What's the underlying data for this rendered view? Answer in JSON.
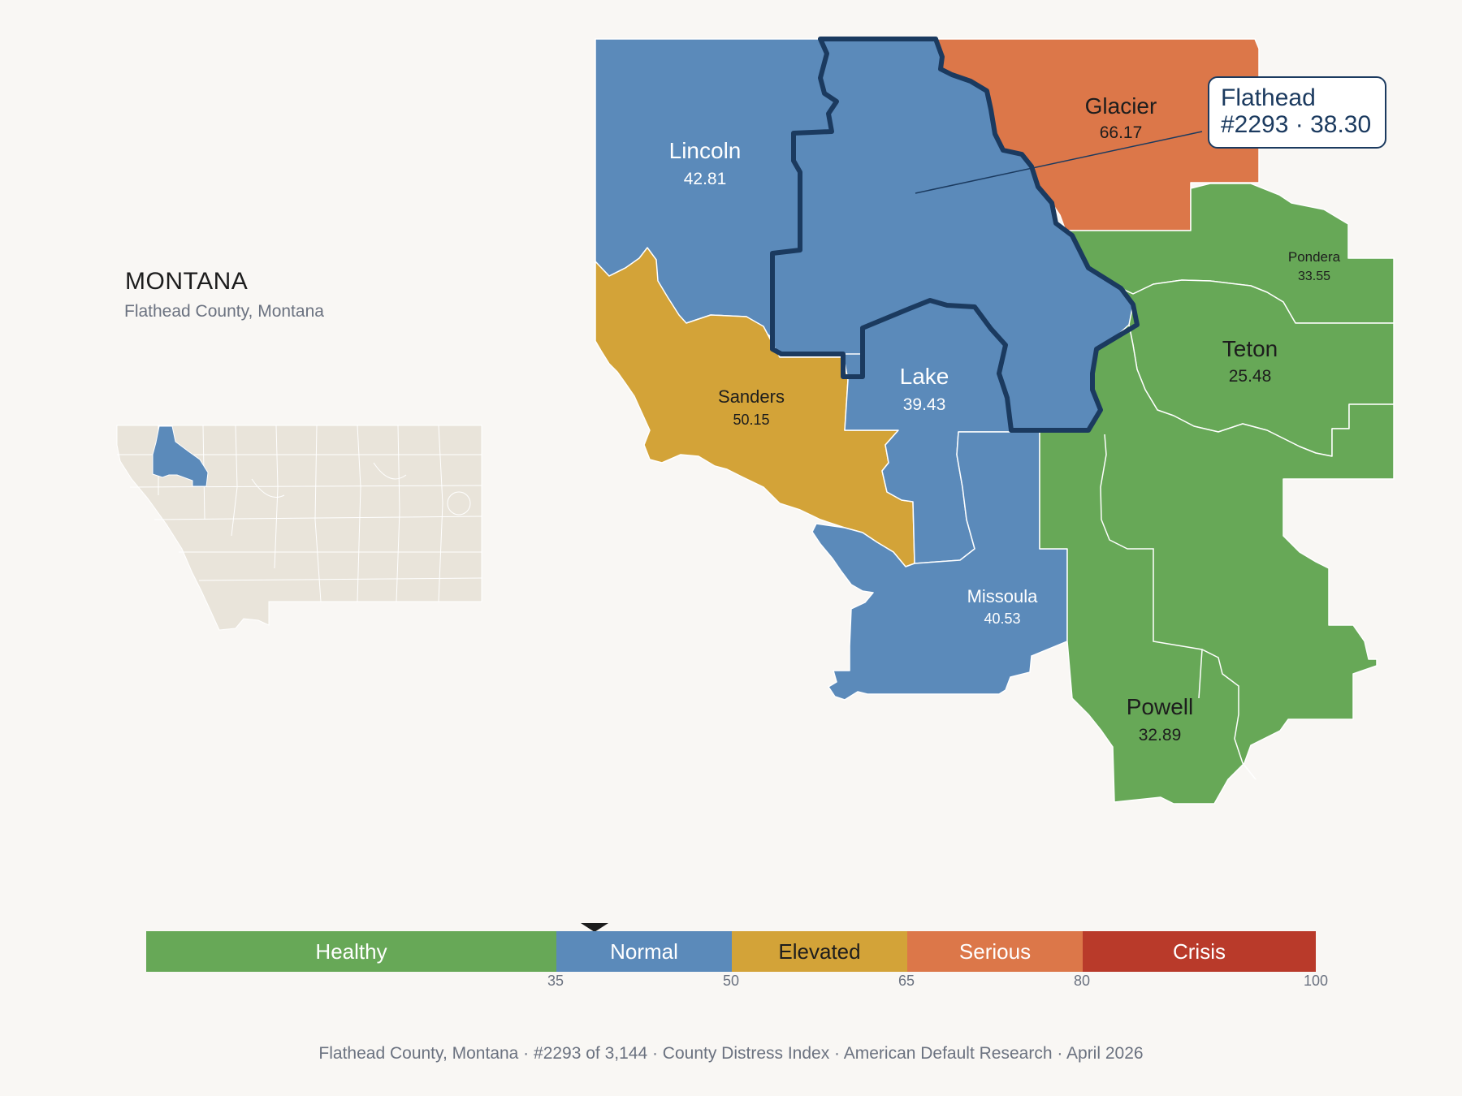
{
  "state": {
    "title": "MONTANA",
    "subtitle": "Flathead County, Montana"
  },
  "callout": {
    "line1": "Flathead",
    "line2": "#2293 · 38.30"
  },
  "counties": {
    "lincoln": {
      "name": "Lincoln",
      "value": "42.81",
      "color": "#5b8aba"
    },
    "flathead": {
      "name": "Flathead",
      "value": "38.30",
      "color": "#5b8aba"
    },
    "glacier": {
      "name": "Glacier",
      "value": "66.17",
      "color": "#dc7749"
    },
    "pondera": {
      "name": "Pondera",
      "value": "33.55",
      "color": "#67a857"
    },
    "teton": {
      "name": "Teton",
      "value": "25.48",
      "color": "#67a857"
    },
    "sanders": {
      "name": "Sanders",
      "value": "50.15",
      "color": "#d3a338"
    },
    "lake": {
      "name": "Lake",
      "value": "39.43",
      "color": "#5b8aba"
    },
    "missoula": {
      "name": "Missoula",
      "value": "40.53",
      "color": "#5b8aba"
    },
    "powell": {
      "name": "Powell",
      "value": "32.89",
      "color": "#67a857"
    }
  },
  "legend": {
    "segments": [
      {
        "label": "Healthy",
        "from": 0,
        "to": 35,
        "color": "#67a857"
      },
      {
        "label": "Normal",
        "from": 35,
        "to": 50,
        "color": "#5b8aba"
      },
      {
        "label": "Elevated",
        "from": 50,
        "to": 65,
        "color": "#d3a338"
      },
      {
        "label": "Serious",
        "from": 65,
        "to": 80,
        "color": "#dc7749"
      },
      {
        "label": "Crisis",
        "from": 80,
        "to": 100,
        "color": "#b93a2a"
      }
    ],
    "ticks": [
      "35",
      "50",
      "65",
      "80",
      "100"
    ],
    "marker_value": 38.3
  },
  "footer": "Flathead County, Montana  ·  #2293 of 3,144  ·  County Distress Index  ·  American Default Research  ·  April 2026"
}
